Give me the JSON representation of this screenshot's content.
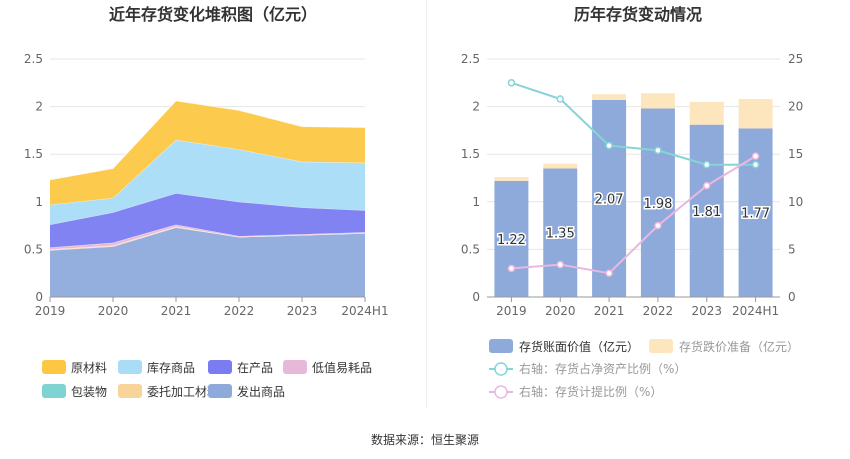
{
  "source_text": "数据来源：恒生聚源",
  "chart_data": [
    {
      "type": "area",
      "stacked": true,
      "title": "近年存货变化堆积图（亿元）",
      "categories": [
        "2019",
        "2020",
        "2021",
        "2022",
        "2023",
        "2024H1"
      ],
      "ylim": [
        0,
        2.5
      ],
      "yticks": [
        "0",
        "0.5",
        "1",
        "1.5",
        "2",
        "2.5"
      ],
      "grid": true,
      "legend_position": "bottom",
      "series": [
        {
          "name": "发出商品",
          "color": "#8eaadb",
          "values": [
            0.49,
            0.53,
            0.73,
            0.63,
            0.65,
            0.67
          ]
        },
        {
          "name": "委托加工材料",
          "color": "#f8d49a",
          "values": [
            0.01,
            0.01,
            0.01,
            0.0,
            0.0,
            0.0
          ]
        },
        {
          "name": "包装物",
          "color": "#7fd3d3",
          "values": [
            0.0,
            0.0,
            0.0,
            0.0,
            0.0,
            0.0
          ]
        },
        {
          "name": "低值易耗品",
          "color": "#e8b8d8",
          "values": [
            0.02,
            0.03,
            0.02,
            0.01,
            0.01,
            0.01
          ]
        },
        {
          "name": "在产品",
          "color": "#7b7cf2",
          "values": [
            0.24,
            0.32,
            0.33,
            0.36,
            0.28,
            0.23
          ]
        },
        {
          "name": "库存商品",
          "color": "#a8dcf7",
          "values": [
            0.21,
            0.15,
            0.56,
            0.55,
            0.48,
            0.5
          ]
        },
        {
          "name": "原材料",
          "color": "#fcc844",
          "values": [
            0.26,
            0.31,
            0.41,
            0.41,
            0.37,
            0.37
          ]
        }
      ],
      "legend_order": [
        "原材料",
        "库存商品",
        "在产品",
        "低值易耗品",
        "包装物",
        "委托加工材料",
        "发出商品"
      ]
    },
    {
      "type": "bar",
      "stacked": true,
      "title": "历年存货变动情况",
      "categories": [
        "2019",
        "2020",
        "2021",
        "2022",
        "2023",
        "2024H1"
      ],
      "ylim": [
        0,
        2.5
      ],
      "y2lim": [
        0,
        25
      ],
      "yticks": [
        "0",
        "0.5",
        "1",
        "1.5",
        "2",
        "2.5"
      ],
      "y2ticks": [
        "0",
        "5",
        "10",
        "15",
        "20",
        "25"
      ],
      "grid": true,
      "legend_position": "bottom",
      "series": [
        {
          "name": "存货账面价值（亿元）",
          "color": "#8eaadb",
          "kind": "bar",
          "values": [
            1.22,
            1.35,
            2.07,
            1.98,
            1.81,
            1.77
          ],
          "labels": [
            "1.22",
            "1.35",
            "2.07",
            "1.98",
            "1.81",
            "1.77"
          ]
        },
        {
          "name": "存货跌价准备（亿元）",
          "color": "#fde5bd",
          "kind": "bar",
          "values": [
            0.04,
            0.05,
            0.06,
            0.16,
            0.24,
            0.31
          ]
        },
        {
          "name": "右轴：存货占净资产比例（%）",
          "color": "#86d4d8",
          "kind": "line",
          "axis": "right",
          "values": [
            22.5,
            20.8,
            15.9,
            15.4,
            13.9,
            13.9
          ]
        },
        {
          "name": "右轴：存货计提比例（%）",
          "color": "#ecb7df",
          "kind": "line",
          "axis": "right",
          "values": [
            3.0,
            3.4,
            2.5,
            7.5,
            11.7,
            14.8
          ]
        }
      ]
    }
  ]
}
